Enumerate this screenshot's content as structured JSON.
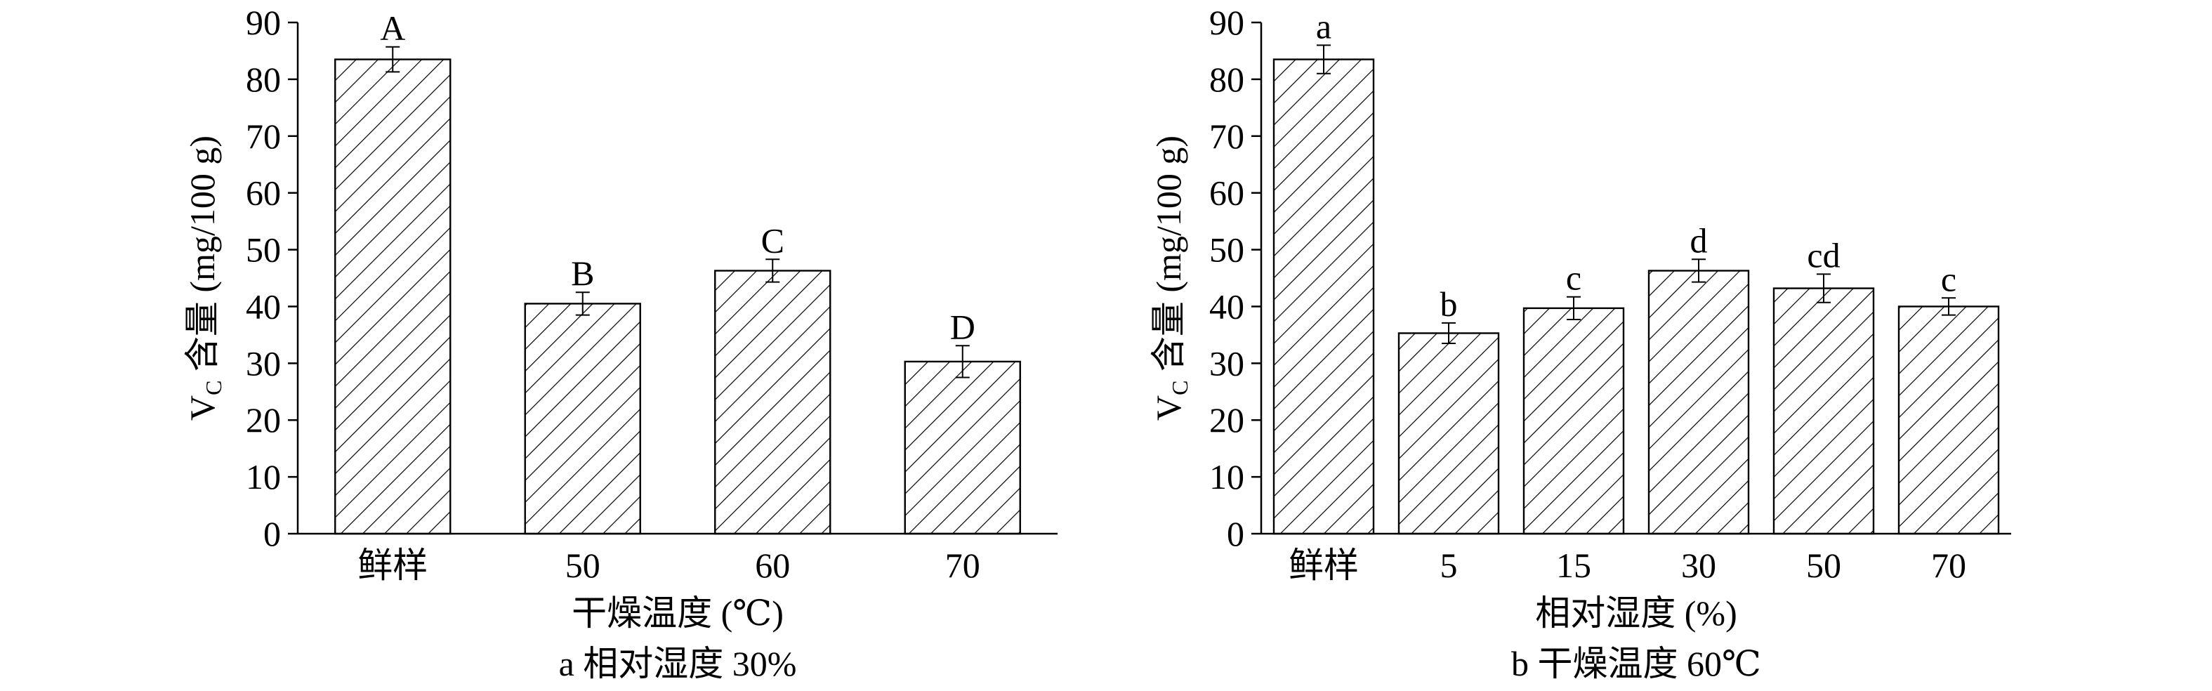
{
  "chart_data": [
    {
      "type": "bar",
      "panel_caption": "a 相对湿度 30%",
      "ylabel": "V",
      "ylabel_subscript": "C",
      "ylabel_rest": " 含量 (mg/100 g)",
      "xlabel": "干燥温度 (℃)",
      "categories": [
        "鲜样",
        "50",
        "60",
        "70"
      ],
      "values": [
        83.5,
        40.5,
        46.3,
        30.3
      ],
      "errors": [
        2.2,
        2.0,
        2.0,
        2.8
      ],
      "labels": [
        "A",
        "B",
        "C",
        "D"
      ],
      "ylim": [
        0,
        90
      ],
      "yticks": [
        "0",
        "10",
        "20",
        "30",
        "40",
        "50",
        "60",
        "70",
        "80",
        "90"
      ],
      "bar_pattern": "diagonal-hatch",
      "grid": false
    },
    {
      "type": "bar",
      "panel_caption": "b 干燥温度 60℃",
      "ylabel": "V",
      "ylabel_subscript": "C",
      "ylabel_rest": " 含量 (mg/100 g)",
      "xlabel": "相对湿度 (%)",
      "categories": [
        "鲜样",
        "5",
        "15",
        "30",
        "50",
        "70"
      ],
      "values": [
        83.5,
        35.3,
        39.7,
        46.3,
        43.2,
        40.0
      ],
      "errors": [
        2.5,
        1.8,
        2.0,
        2.0,
        2.5,
        1.5
      ],
      "labels": [
        "a",
        "b",
        "c",
        "d",
        "cd",
        "c"
      ],
      "ylim": [
        0,
        90
      ],
      "yticks": [
        "0",
        "10",
        "20",
        "30",
        "40",
        "50",
        "60",
        "70",
        "80",
        "90"
      ],
      "bar_pattern": "diagonal-hatch",
      "grid": false
    }
  ]
}
